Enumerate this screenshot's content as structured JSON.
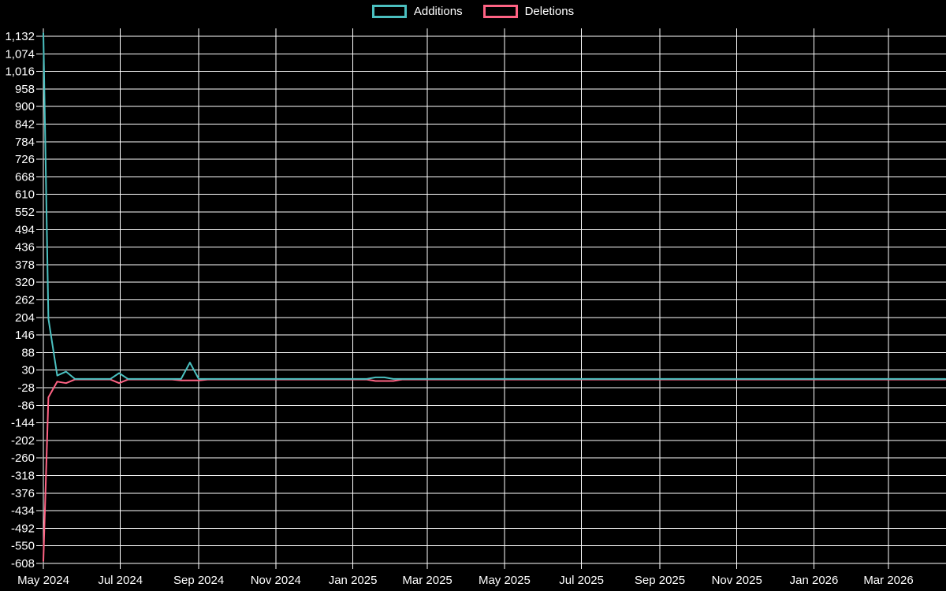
{
  "legend": {
    "items": [
      {
        "label": "Additions",
        "color": "#4bc0c0"
      },
      {
        "label": "Deletions",
        "color": "#ff6384"
      }
    ]
  },
  "colors": {
    "background": "#000000",
    "grid": "#ffffff",
    "text": "#ffffff",
    "additions": "#4bc0c0",
    "deletions": "#ff6384"
  },
  "chart_data": {
    "type": "line",
    "title": "",
    "xlabel": "",
    "ylabel": "",
    "grid": true,
    "legend_position": "top-center",
    "ylim": [
      -608,
      1132
    ],
    "y_ticks": [
      1132,
      1074,
      1016,
      958,
      900,
      842,
      784,
      726,
      668,
      610,
      552,
      494,
      436,
      378,
      320,
      262,
      204,
      146,
      88,
      30,
      -28,
      -86,
      -144,
      -202,
      -260,
      -318,
      -376,
      -434,
      -492,
      -550,
      -608
    ],
    "y_tick_labels": [
      "1,132",
      "1,074",
      "1,016",
      "958",
      "900",
      "842",
      "784",
      "726",
      "668",
      "610",
      "552",
      "494",
      "436",
      "378",
      "320",
      "262",
      "204",
      "146",
      "88",
      "30",
      "-28",
      "-86",
      "-144",
      "-202",
      "-260",
      "-318",
      "-376",
      "-434",
      "-492",
      "-550",
      "-608"
    ],
    "x_ticks": [
      "2024-05-01",
      "2024-07-01",
      "2024-09-01",
      "2024-11-01",
      "2025-01-01",
      "2025-03-01",
      "2025-05-01",
      "2025-07-01",
      "2025-09-01",
      "2025-11-01",
      "2026-01-01",
      "2026-03-01"
    ],
    "x_tick_labels": [
      "May 2024",
      "Jul 2024",
      "Sep 2024",
      "Nov 2024",
      "Jan 2025",
      "Mar 2025",
      "May 2025",
      "Jul 2025",
      "Sep 2025",
      "Nov 2025",
      "Jan 2026",
      "Mar 2026"
    ],
    "series": [
      {
        "name": "Additions",
        "color": "#4bc0c0",
        "points": [
          [
            "2024-05-01",
            1142
          ],
          [
            "2024-05-05",
            200
          ],
          [
            "2024-05-12",
            12
          ],
          [
            "2024-05-19",
            25
          ],
          [
            "2024-05-26",
            1
          ],
          [
            "2024-06-23",
            1
          ],
          [
            "2024-06-30",
            20
          ],
          [
            "2024-07-07",
            1
          ],
          [
            "2024-08-18",
            1
          ],
          [
            "2024-08-25",
            55
          ],
          [
            "2024-09-01",
            1
          ],
          [
            "2025-01-12",
            1
          ],
          [
            "2025-01-19",
            6
          ],
          [
            "2025-01-26",
            6
          ],
          [
            "2025-02-02",
            1
          ],
          [
            "2026-04-15",
            1
          ]
        ]
      },
      {
        "name": "Deletions",
        "color": "#ff6384",
        "points": [
          [
            "2024-05-01",
            -600
          ],
          [
            "2024-05-05",
            -60
          ],
          [
            "2024-05-12",
            -8
          ],
          [
            "2024-05-19",
            -13
          ],
          [
            "2024-05-26",
            -1
          ],
          [
            "2024-06-23",
            -1
          ],
          [
            "2024-06-30",
            -13
          ],
          [
            "2024-07-07",
            -1
          ],
          [
            "2024-08-11",
            -1
          ],
          [
            "2024-08-18",
            -4
          ],
          [
            "2024-08-25",
            -4
          ],
          [
            "2024-09-01",
            -4
          ],
          [
            "2024-09-08",
            -1
          ],
          [
            "2025-01-12",
            -1
          ],
          [
            "2025-01-19",
            -6
          ],
          [
            "2025-01-26",
            -6
          ],
          [
            "2025-02-02",
            -6
          ],
          [
            "2025-02-09",
            -1
          ],
          [
            "2026-04-15",
            -1
          ]
        ]
      }
    ]
  }
}
